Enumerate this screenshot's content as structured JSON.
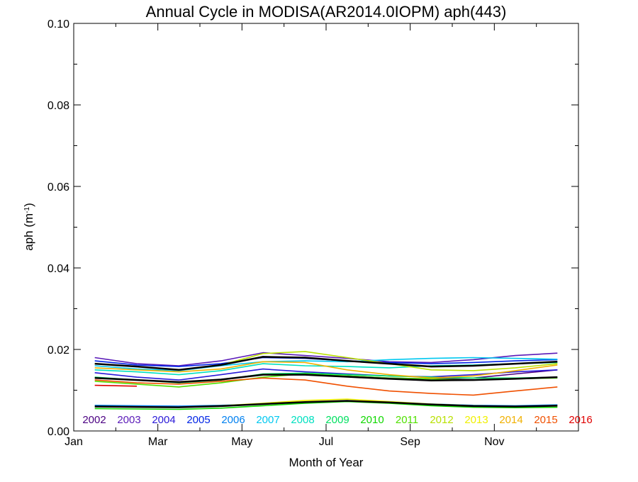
{
  "chart_data": {
    "type": "line",
    "title": "Annual Cycle in MODISA(AR2014.0IOPM) aph(443)",
    "xlabel": "Month of Year",
    "ylabel_main": "aph (m",
    "ylabel_sup": "-1",
    "ylabel_end": ")",
    "xlim": [
      1,
      13
    ],
    "ylim": [
      0,
      0.1
    ],
    "x_ticks": [
      {
        "value": 1,
        "label": "Jan"
      },
      {
        "value": 3,
        "label": "Mar"
      },
      {
        "value": 5,
        "label": "May"
      },
      {
        "value": 7,
        "label": "Jul"
      },
      {
        "value": 9,
        "label": "Sep"
      },
      {
        "value": 11,
        "label": "Nov"
      }
    ],
    "y_ticks": [
      {
        "value": 0,
        "label": "0.00"
      },
      {
        "value": 0.02,
        "label": "0.02"
      },
      {
        "value": 0.04,
        "label": "0.04"
      },
      {
        "value": 0.06,
        "label": "0.06"
      },
      {
        "value": 0.08,
        "label": "0.08"
      },
      {
        "value": 0.1,
        "label": "0.10"
      }
    ],
    "x": [
      1.5,
      2.5,
      3.5,
      4.5,
      5.5,
      6.5,
      7.5,
      8.5,
      9.5,
      10.5,
      11.5,
      12.5
    ],
    "legend_placement": "bottom",
    "grid": false,
    "series": [
      {
        "name": "2002",
        "color": "#4b0082",
        "values": [
          null,
          null,
          null,
          null,
          null,
          null,
          0.0135,
          0.013,
          0.0128,
          0.013,
          0.014,
          0.015
        ]
      },
      {
        "name": "2003",
        "color": "#5a1ab8",
        "values": [
          0.018,
          0.0165,
          0.016,
          0.0172,
          0.0192,
          0.0185,
          0.0178,
          0.017,
          0.0168,
          0.0175,
          0.0185,
          0.0191
        ]
      },
      {
        "name": "2004",
        "color": "#2a1ad8",
        "values": [
          0.0143,
          0.0132,
          0.0125,
          0.0138,
          0.0152,
          0.0145,
          0.014,
          0.0135,
          0.0133,
          0.0138,
          0.0145,
          0.015
        ]
      },
      {
        "name": "2005",
        "color": "#0024e6",
        "values": [
          0.0172,
          0.0162,
          0.0158,
          0.0165,
          0.018,
          0.0178,
          0.0172,
          0.0168,
          0.0165,
          0.0168,
          0.0172,
          0.0175
        ]
      },
      {
        "name": "2006",
        "color": "#0080f0",
        "values": [
          0.0063,
          0.0062,
          0.0061,
          0.0063,
          0.0066,
          0.007,
          0.0073,
          0.007,
          0.0066,
          0.0063,
          0.0062,
          0.0064
        ]
      },
      {
        "name": "2007",
        "color": "#00c8f0",
        "values": [
          0.016,
          0.0152,
          0.0148,
          0.016,
          0.017,
          0.0172,
          0.017,
          0.0175,
          0.0178,
          0.018,
          0.0178,
          0.0176
        ]
      },
      {
        "name": "2008",
        "color": "#00e0c0",
        "values": [
          0.015,
          0.0145,
          0.0138,
          0.0148,
          0.0165,
          0.016,
          0.0158,
          0.0155,
          0.016,
          0.0162,
          0.0165,
          0.0168
        ]
      },
      {
        "name": "2009",
        "color": "#00e060",
        "values": [
          0.0132,
          0.0125,
          0.0118,
          0.0125,
          0.014,
          0.0142,
          0.0138,
          0.0135,
          0.0132,
          0.013,
          0.013,
          0.0132
        ]
      },
      {
        "name": "2010",
        "color": "#10d800",
        "values": [
          0.0055,
          0.0054,
          0.0053,
          0.0056,
          0.0062,
          0.0068,
          0.0072,
          0.0068,
          0.0062,
          0.0058,
          0.0057,
          0.0058
        ]
      },
      {
        "name": "2011",
        "color": "#50e000",
        "values": [
          0.0122,
          0.0115,
          0.0108,
          0.0118,
          0.0132,
          0.014,
          0.0135,
          0.013,
          0.0128,
          0.0125,
          0.0128,
          0.013
        ]
      },
      {
        "name": "2012",
        "color": "#b8e000",
        "values": [
          0.0165,
          0.0158,
          0.015,
          0.0162,
          0.019,
          0.0195,
          0.018,
          0.0165,
          0.015,
          0.0148,
          0.0155,
          0.0165
        ]
      },
      {
        "name": "2013",
        "color": "#f0f000",
        "values": [
          0.006,
          0.0059,
          0.0058,
          0.0062,
          0.0068,
          0.0075,
          0.0078,
          0.0072,
          0.0066,
          0.0062,
          0.006,
          0.0062
        ]
      },
      {
        "name": "2014",
        "color": "#f0b000",
        "values": [
          0.0155,
          0.015,
          0.0145,
          0.0152,
          0.017,
          0.0168,
          0.015,
          0.0138,
          0.013,
          0.0135,
          0.0148,
          0.0162
        ]
      },
      {
        "name": "2015",
        "color": "#f05000",
        "values": [
          0.0125,
          0.0118,
          0.0115,
          0.0122,
          0.013,
          0.0125,
          0.011,
          0.0098,
          0.0092,
          0.0088,
          0.0098,
          0.0108
        ]
      },
      {
        "name": "2016",
        "color": "#e00000",
        "values": [
          0.0112,
          0.011,
          null,
          null,
          null,
          null,
          null,
          null,
          null,
          null,
          null,
          null
        ]
      },
      {
        "color": "#000000",
        "width": 2.5,
        "values": [
          0.0165,
          0.0158,
          0.015,
          0.0162,
          0.0182,
          0.018,
          0.0172,
          0.0165,
          0.0158,
          0.016,
          0.0165,
          0.017
        ]
      },
      {
        "color": "#000000",
        "width": 2.5,
        "values": [
          0.013,
          0.0125,
          0.012,
          0.0126,
          0.0138,
          0.0138,
          0.0133,
          0.0128,
          0.0124,
          0.0125,
          0.0128,
          0.0132
        ]
      },
      {
        "color": "#000000",
        "width": 2.5,
        "values": [
          0.006,
          0.0059,
          0.0058,
          0.0061,
          0.0066,
          0.0071,
          0.0074,
          0.007,
          0.0065,
          0.0061,
          0.006,
          0.0062
        ]
      }
    ]
  }
}
